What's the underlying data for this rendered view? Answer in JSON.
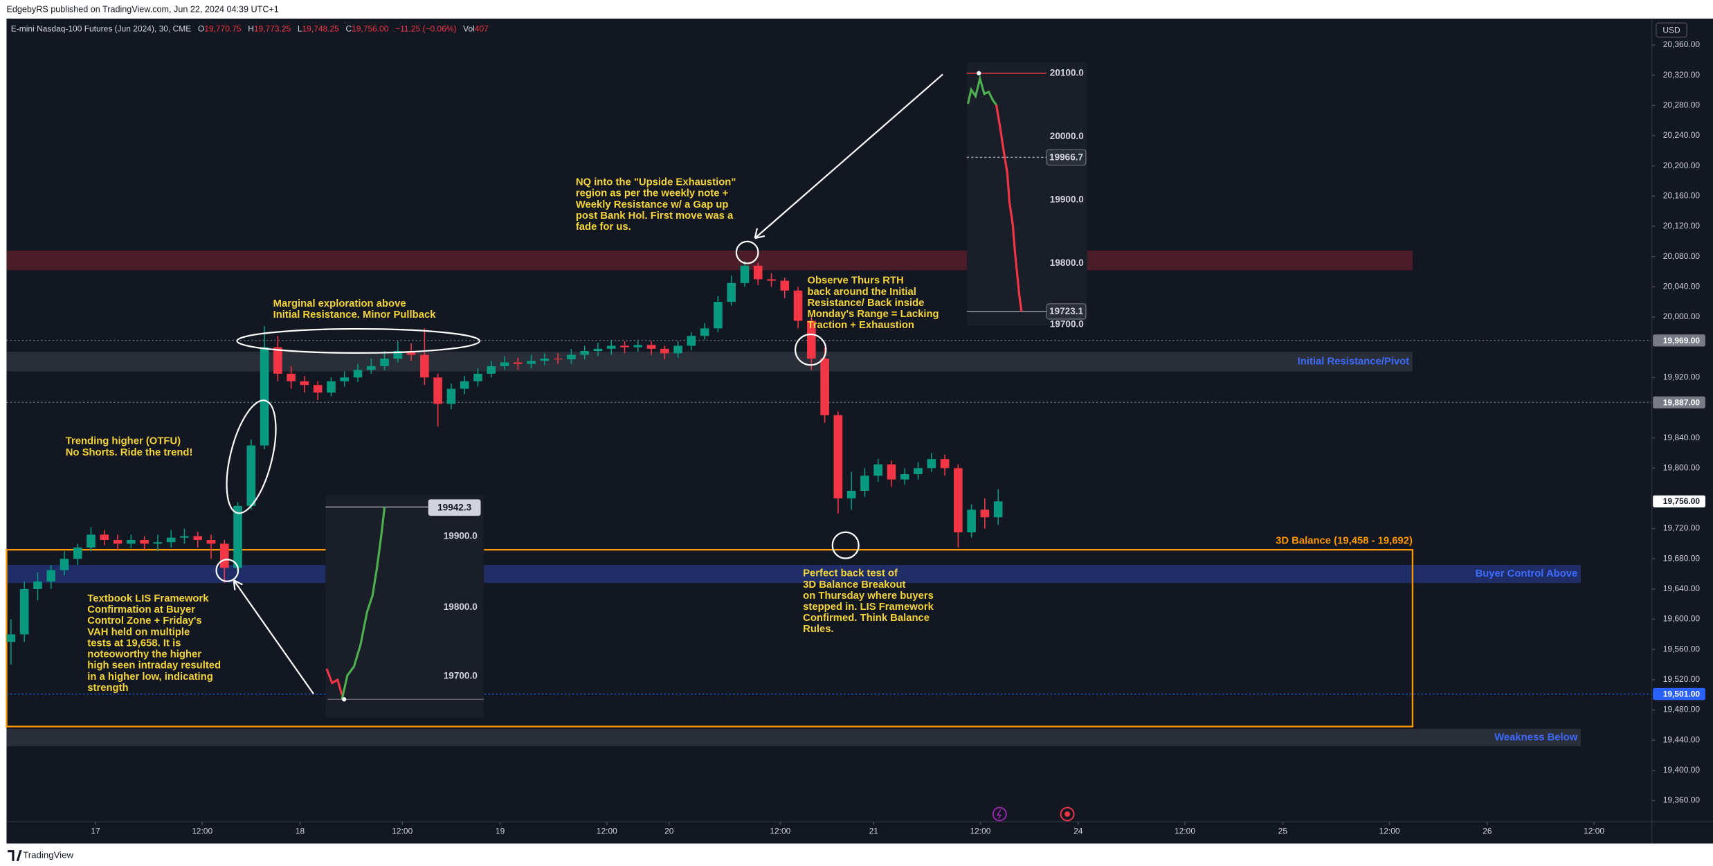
{
  "header": {
    "text": "EdgebyRS published on TradingView.com, Jun 22, 2024 04:39 UTC+1"
  },
  "footer": {
    "text": "TradingView"
  },
  "chart_data": {
    "type": "candlestick",
    "title": "E-mini Nasdaq-100 Futures (Jun 2024), 30, CME",
    "ohlc": [
      {
        "key": "O",
        "value": "19,770.75"
      },
      {
        "key": "H",
        "value": "19,773.25"
      },
      {
        "key": "L",
        "value": "19,748.25"
      },
      {
        "key": "C",
        "value": "19,756.00"
      }
    ],
    "change": "−11.25 (−0.06%)",
    "volume": {
      "key": "Vol",
      "value": "407"
    },
    "currency": "USD",
    "up_color": "#089981",
    "down_color": "#f23645",
    "ylim": [
      19332,
      20395
    ],
    "yticks": [
      {
        "value": 20360,
        "label": "20,360.00"
      },
      {
        "value": 20320,
        "label": "20,320.00"
      },
      {
        "value": 20280,
        "label": "20,280.00"
      },
      {
        "value": 20240,
        "label": "20,240.00"
      },
      {
        "value": 20200,
        "label": "20,200.00"
      },
      {
        "value": 20160,
        "label": "20,160.00"
      },
      {
        "value": 20120,
        "label": "20,120.00"
      },
      {
        "value": 20080,
        "label": "20,080.00"
      },
      {
        "value": 20040,
        "label": "20,040.00"
      },
      {
        "value": 20000,
        "label": "20,000.00"
      },
      {
        "value": 19920,
        "label": "19,920.00"
      },
      {
        "value": 19840,
        "label": "19,840.00"
      },
      {
        "value": 19800,
        "label": "19,800.00"
      },
      {
        "value": 19720,
        "label": "19,720.00"
      },
      {
        "value": 19680,
        "label": "19,680.00"
      },
      {
        "value": 19640,
        "label": "19,640.00"
      },
      {
        "value": 19600,
        "label": "19,600.00"
      },
      {
        "value": 19560,
        "label": "19,560.00"
      },
      {
        "value": 19520,
        "label": "19,520.00"
      },
      {
        "value": 19480,
        "label": "19,480.00"
      },
      {
        "value": 19440,
        "label": "19,440.00"
      },
      {
        "value": 19400,
        "label": "19,400.00"
      },
      {
        "value": 19360,
        "label": "19,360.00"
      }
    ],
    "xlim": [
      0,
      370
    ],
    "xticks": [
      {
        "value": 20,
        "label": "17"
      },
      {
        "value": 44,
        "label": "12:00"
      },
      {
        "value": 66,
        "label": "18"
      },
      {
        "value": 89,
        "label": "12:00"
      },
      {
        "value": 111,
        "label": "19"
      },
      {
        "value": 135,
        "label": "12:00"
      },
      {
        "value": 149,
        "label": "20"
      },
      {
        "value": 174,
        "label": "12:00"
      },
      {
        "value": 195,
        "label": "21"
      },
      {
        "value": 219,
        "label": "12:00"
      },
      {
        "value": 241,
        "label": "24"
      },
      {
        "value": 265,
        "label": "12:00"
      },
      {
        "value": 287,
        "label": "25"
      },
      {
        "value": 311,
        "label": "12:00"
      },
      {
        "value": 333,
        "label": "26"
      },
      {
        "value": 357,
        "label": "12:00"
      }
    ],
    "candles": {
      "x": [
        1,
        4,
        7,
        10,
        13,
        16,
        19,
        22,
        25,
        28,
        31,
        34,
        37,
        40,
        43,
        46,
        49,
        52,
        55,
        58,
        61,
        64,
        67,
        70,
        73,
        76,
        79,
        82,
        85,
        88,
        91,
        94,
        97,
        100,
        103,
        106,
        109,
        112,
        115,
        118,
        121,
        124,
        127,
        130,
        133,
        136,
        139,
        142,
        145,
        148,
        151,
        154,
        157,
        160,
        163,
        166,
        169,
        172,
        175,
        178,
        181,
        184,
        187,
        190,
        193,
        196,
        199,
        202,
        205,
        208,
        211,
        214,
        217,
        220,
        223
      ],
      "open": [
        19570,
        19580,
        19640,
        19650,
        19665,
        19680,
        19695,
        19712,
        19705,
        19700,
        19705,
        19700,
        19702,
        19708,
        19710,
        19705,
        19700,
        19668,
        19750,
        19830,
        19960,
        19925,
        19915,
        19910,
        19900,
        19915,
        19920,
        19930,
        19935,
        19945,
        19955,
        19950,
        19920,
        19885,
        19905,
        19915,
        19925,
        19935,
        19940,
        19938,
        19942,
        19945,
        19944,
        19950,
        19955,
        19958,
        19962,
        19960,
        19963,
        19958,
        19952,
        19962,
        19975,
        19985,
        20020,
        20045,
        20068,
        20050,
        20048,
        20035,
        19995,
        19945,
        19870,
        19760,
        19770,
        19790,
        19805,
        19785,
        19792,
        19800,
        19812,
        19800,
        19715,
        19745,
        19735
      ],
      "high": [
        19600,
        19650,
        19662,
        19672,
        19690,
        19700,
        19722,
        19718,
        19712,
        19712,
        19710,
        19712,
        19718,
        19720,
        19716,
        19712,
        19705,
        19755,
        19838,
        19988,
        19975,
        19935,
        19922,
        19915,
        19920,
        19928,
        19938,
        19945,
        19955,
        19968,
        19965,
        19985,
        19925,
        19912,
        19922,
        19932,
        19942,
        19948,
        19946,
        19950,
        19952,
        19952,
        19958,
        19962,
        19966,
        19970,
        19968,
        19970,
        19968,
        19962,
        19968,
        19980,
        19992,
        20028,
        20055,
        20074,
        20072,
        20058,
        20052,
        20040,
        20000,
        19960,
        19875,
        19795,
        19800,
        19812,
        19810,
        19800,
        19808,
        19820,
        19818,
        19805,
        19752,
        19760,
        19772
      ],
      "low": [
        19540,
        19570,
        19625,
        19640,
        19658,
        19672,
        19690,
        19698,
        19692,
        19694,
        19692,
        19690,
        19695,
        19700,
        19695,
        19680,
        19648,
        19662,
        19745,
        19825,
        19915,
        19905,
        19900,
        19890,
        19895,
        19908,
        19914,
        19925,
        19930,
        19940,
        19942,
        19910,
        19855,
        19878,
        19898,
        19908,
        19920,
        19930,
        19930,
        19932,
        19936,
        19938,
        19938,
        19944,
        19948,
        19950,
        19952,
        19954,
        19950,
        19944,
        19946,
        19956,
        19970,
        19980,
        20015,
        20040,
        20042,
        20040,
        20025,
        19985,
        19930,
        19860,
        19740,
        19745,
        19762,
        19782,
        19775,
        19778,
        19785,
        19795,
        19790,
        19695,
        19708,
        19720,
        19725
      ],
      "close": [
        19580,
        19640,
        19650,
        19665,
        19680,
        19695,
        19712,
        19705,
        19700,
        19705,
        19700,
        19702,
        19708,
        19710,
        19705,
        19700,
        19668,
        19750,
        19830,
        19960,
        19925,
        19915,
        19910,
        19900,
        19915,
        19920,
        19930,
        19935,
        19945,
        19955,
        19950,
        19920,
        19885,
        19905,
        19915,
        19925,
        19935,
        19940,
        19938,
        19942,
        19945,
        19944,
        19950,
        19955,
        19958,
        19962,
        19960,
        19963,
        19958,
        19952,
        19962,
        19975,
        19985,
        20020,
        20045,
        20068,
        20050,
        20048,
        20035,
        19995,
        19945,
        19870,
        19760,
        19770,
        19790,
        19805,
        19785,
        19792,
        19800,
        19812,
        19800,
        19715,
        19745,
        19735,
        19756
      ]
    },
    "zones": [
      {
        "top": 20088,
        "bottom": 20062,
        "color": "#4a1d29"
      },
      {
        "top": 19954,
        "bottom": 19928,
        "color": "#2a2e39",
        "label": "Initial Resistance/Pivot"
      },
      {
        "top": 19672,
        "bottom": 19648,
        "color": "#1f2d66",
        "label": "Buyer Control Above"
      },
      {
        "top": 19455,
        "bottom": 19432,
        "color": "#2a2e39",
        "label": "Weakness Below"
      }
    ],
    "balance_box": {
      "top": 19692,
      "bottom": 19458,
      "color": "#ff9800",
      "label": "3D Balance (19,458 - 19,692)"
    },
    "price_lines": [
      {
        "value": 19969,
        "label": "19,969.00",
        "color": "#787b86"
      },
      {
        "value": 19887,
        "label": "19,887.00",
        "color": "#787b86"
      },
      {
        "value": 19756,
        "label": "19,756.00",
        "color": "#ffffff"
      },
      {
        "value": 19501,
        "label": "19,501.00",
        "color": "#2962ff"
      }
    ],
    "annotations": [
      {
        "lines": [
          "NQ into the \"Upside Exhaustion\"",
          "region as per the weekly note +",
          "Weekly Resistance w/ a Gap up",
          "post Bank Hol. First move was a",
          "fade for us."
        ]
      },
      {
        "lines": [
          "Marginal exploration above",
          "Initial Resistance. Minor Pullback"
        ]
      },
      {
        "lines": [
          "Trending higher (OTFU)",
          "No Shorts. Ride the trend!"
        ]
      },
      {
        "lines": [
          "Textbook LIS Framework",
          "Confirmation at Buyer",
          "Control Zone + Friday's",
          "VAH held on multiple",
          "tests at 19,658. It is",
          "noteoworthy the higher",
          "high seen intraday resulted",
          "in a higher low, indicating",
          "strength"
        ]
      },
      {
        "lines": [
          "Observe Thurs RTH",
          "back around the Initial",
          "Resistance/ Back inside",
          "Monday's Range = Lacking",
          "Traction + Exhaustion"
        ]
      },
      {
        "lines": [
          "Perfect back test of",
          "3D Balance Breakout",
          "on Thursday where buyers",
          "stepped in. LIS Framework",
          "Confirmed. Think Balance",
          "Rules."
        ]
      }
    ]
  },
  "insets": [
    {
      "tag": "19942.3",
      "labels": [
        "19900.0",
        "19800.0",
        "19700.0"
      ]
    },
    {
      "labels": [
        "20100.0",
        "20000.0",
        "19900.0",
        "19800.0",
        "19700.0"
      ],
      "tags": [
        "19966.7",
        "19723.1"
      ]
    }
  ]
}
